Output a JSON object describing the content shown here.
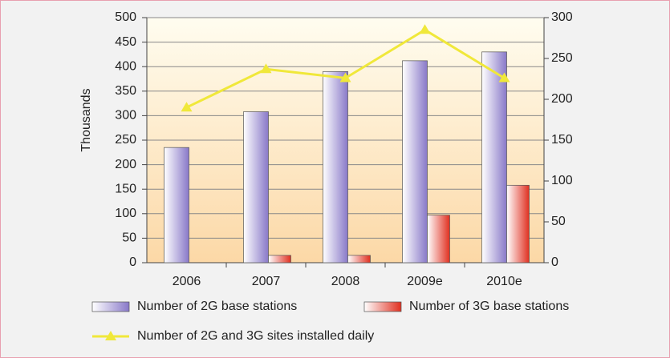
{
  "chart_data": {
    "type": "bar",
    "y_label": "Thousands",
    "categories": [
      "2006",
      "2007",
      "2008",
      "2009e",
      "2010e"
    ],
    "series": [
      {
        "name": "Number of 2G base stations",
        "color": "#8878c8",
        "values": [
          235,
          308,
          390,
          412,
          430
        ]
      },
      {
        "name": "Number of 3G base stations",
        "color": "#e03020",
        "values": [
          null,
          15,
          15,
          97,
          158
        ]
      },
      {
        "name": "Number of 2G and 3G sites installed daily",
        "color": "#f0e83a",
        "type": "line",
        "axis": "y2",
        "values": [
          190,
          237,
          226,
          285,
          226
        ]
      }
    ],
    "ylim": [
      0,
      500
    ],
    "yticks": [
      0,
      50,
      100,
      150,
      200,
      250,
      300,
      350,
      400,
      450,
      500
    ],
    "y2lim": [
      0,
      300
    ],
    "y2ticks": [
      0,
      50,
      100,
      150,
      200,
      250,
      300
    ],
    "grid": true
  }
}
